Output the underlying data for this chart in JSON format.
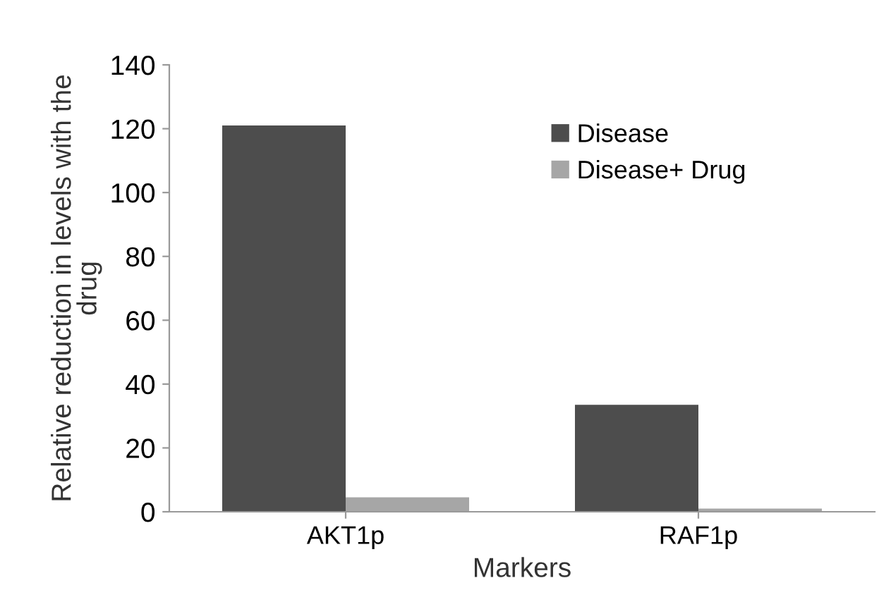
{
  "chart_data": {
    "type": "bar",
    "xlabel": "Markers",
    "ylabel": "Relative reduction in levels with the\ndrug",
    "categories": [
      "AKT1p",
      "RAF1p"
    ],
    "series": [
      {
        "name": "Disease",
        "color": "#4d4d4d",
        "values": [
          121,
          33.5
        ]
      },
      {
        "name": "Disease+ Drug",
        "color": "#a6a6a6",
        "values": [
          4.5,
          1
        ]
      }
    ],
    "ylim": [
      0,
      140
    ],
    "yticks": [
      0,
      20,
      40,
      60,
      80,
      100,
      120,
      140
    ],
    "grid": false,
    "legend": "top right"
  }
}
